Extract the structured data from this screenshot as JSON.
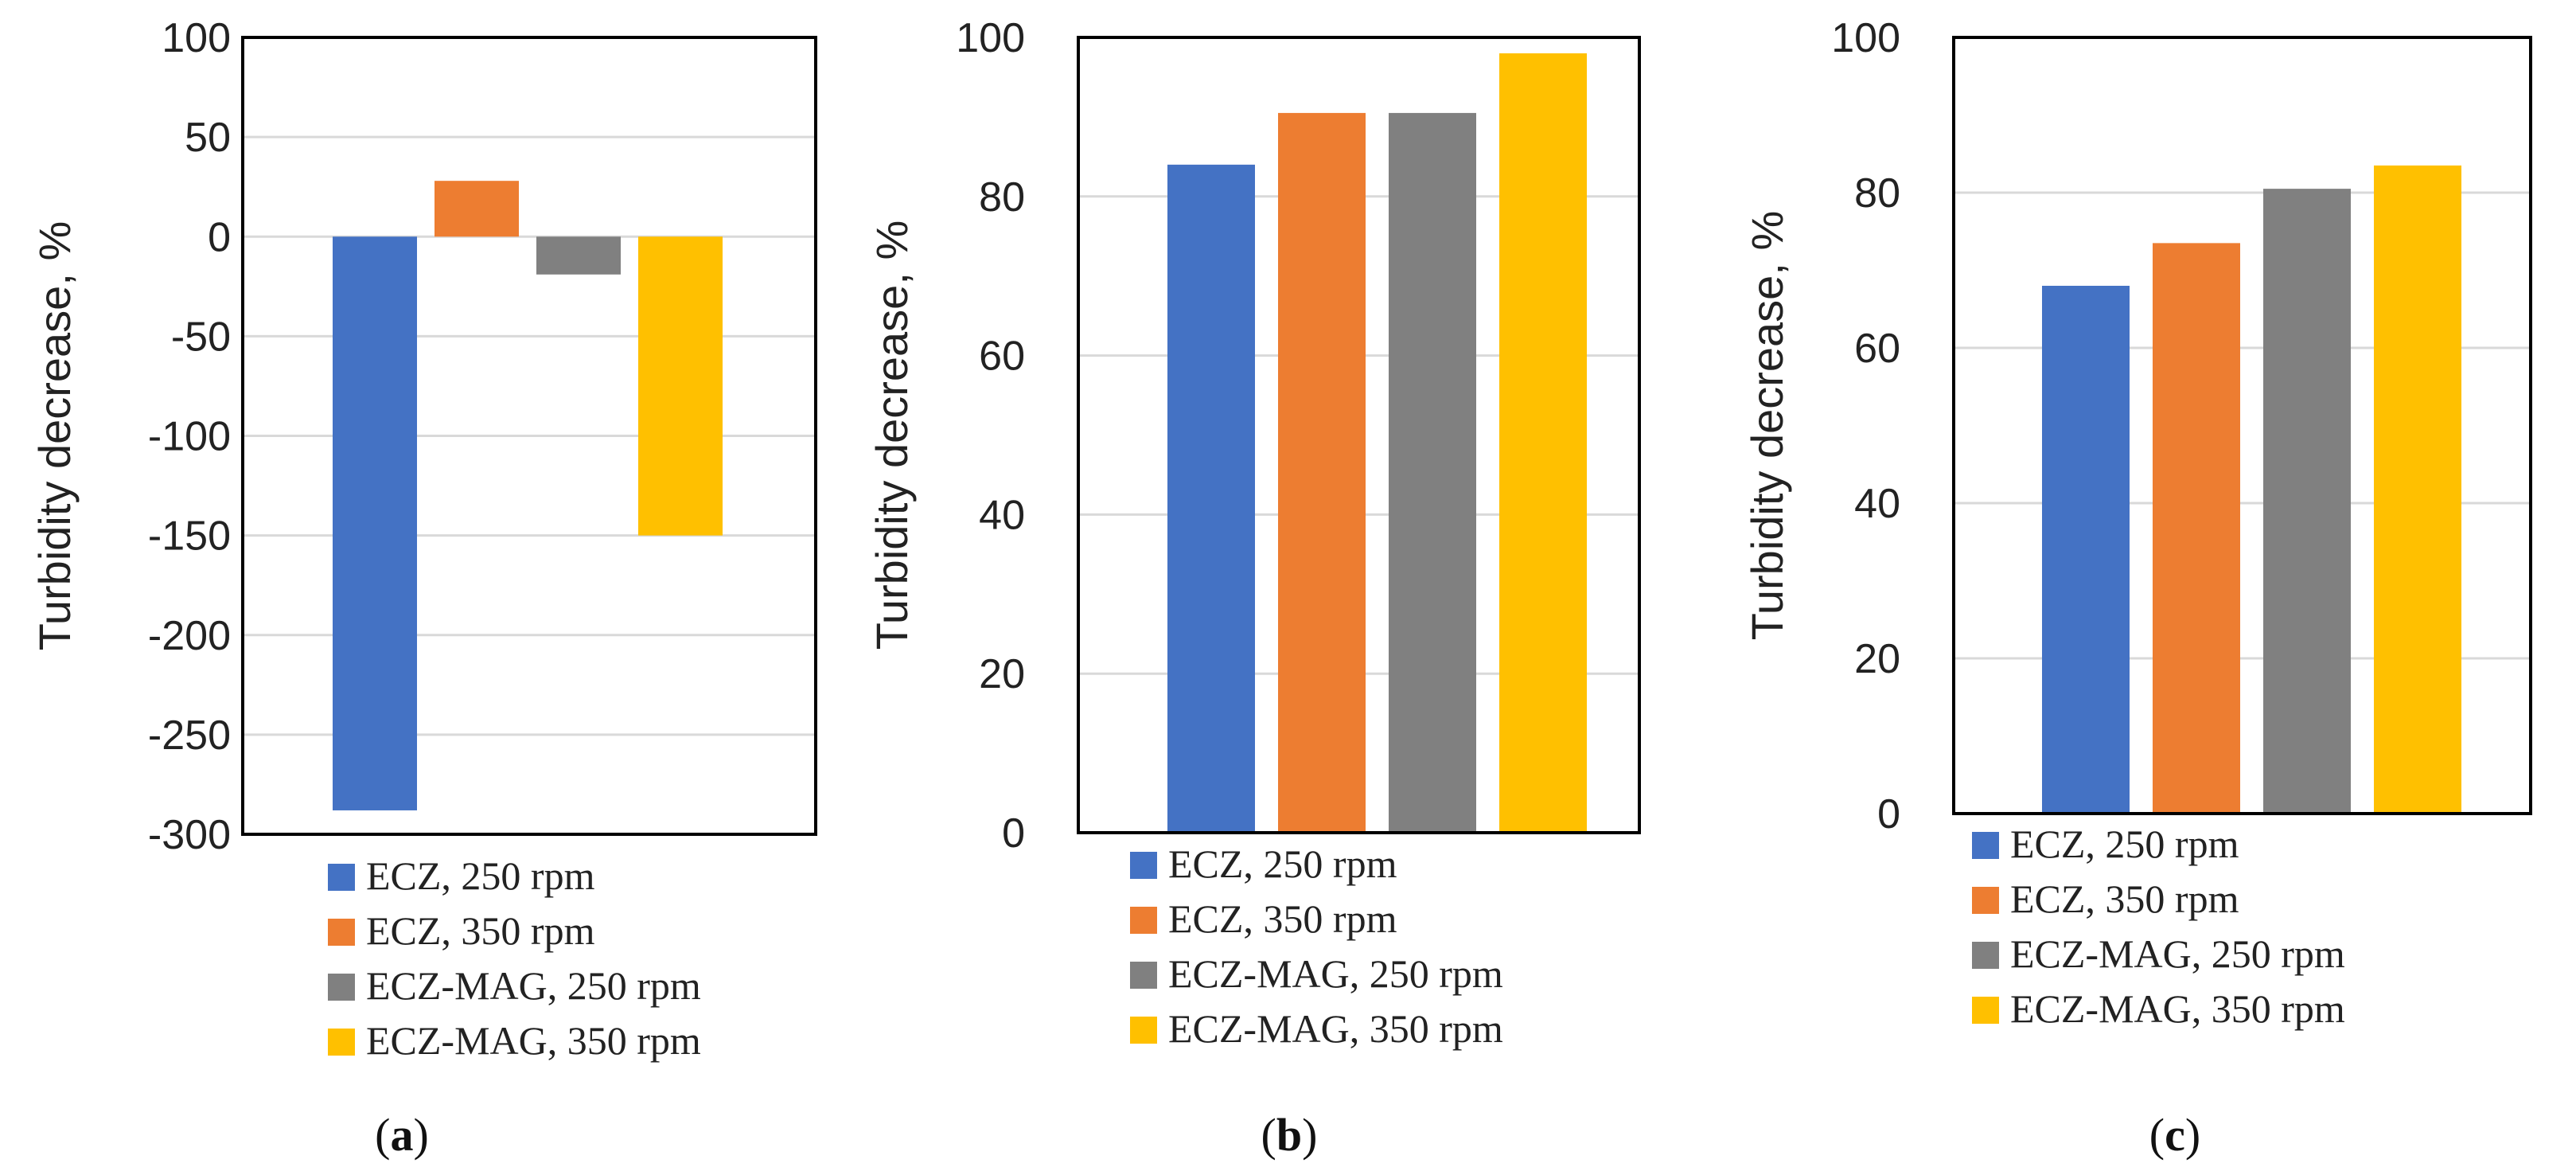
{
  "chart_data": [
    {
      "type": "bar",
      "panel": "a",
      "caption": "a",
      "ylabel": "Turbidity decrease, %",
      "ylim": [
        -300,
        100
      ],
      "yticks": [
        100,
        50,
        0,
        -50,
        -100,
        -150,
        -200,
        -250,
        -300
      ],
      "grid": true,
      "legend_position": "bottom",
      "series": [
        {
          "name": "ECZ, 250 rpm",
          "color": "#4472C4",
          "value": -288
        },
        {
          "name": "ECZ, 350 rpm",
          "color": "#ED7D31",
          "value": 28
        },
        {
          "name": "ECZ-MAG, 250 rpm",
          "color": "#808080",
          "value": -19
        },
        {
          "name": "ECZ-MAG, 350 rpm",
          "color": "#FFC000",
          "value": -150
        }
      ]
    },
    {
      "type": "bar",
      "panel": "b",
      "caption": "b",
      "ylabel": "Turbidity decrease, %",
      "ylim": [
        0,
        100
      ],
      "yticks": [
        100,
        80,
        60,
        40,
        20,
        0
      ],
      "grid": true,
      "legend_position": "bottom",
      "series": [
        {
          "name": "ECZ, 250 rpm",
          "color": "#4472C4",
          "value": 84
        },
        {
          "name": "ECZ, 350 rpm",
          "color": "#ED7D31",
          "value": 90.5
        },
        {
          "name": "ECZ-MAG, 250 rpm",
          "color": "#808080",
          "value": 90.5
        },
        {
          "name": "ECZ-MAG, 350 rpm",
          "color": "#FFC000",
          "value": 98
        }
      ]
    },
    {
      "type": "bar",
      "panel": "c",
      "caption": "c",
      "ylabel": "Turbidity decrease, %",
      "ylim": [
        0,
        100
      ],
      "yticks": [
        100,
        80,
        60,
        40,
        20,
        0
      ],
      "grid": true,
      "legend_position": "bottom",
      "series": [
        {
          "name": "ECZ, 250 rpm",
          "color": "#4472C4",
          "value": 68
        },
        {
          "name": "ECZ, 350 rpm",
          "color": "#ED7D31",
          "value": 73.5
        },
        {
          "name": "ECZ-MAG, 250 rpm",
          "color": "#808080",
          "value": 80.5
        },
        {
          "name": "ECZ-MAG, 350 rpm",
          "color": "#FFC000",
          "value": 83.5
        }
      ]
    }
  ]
}
